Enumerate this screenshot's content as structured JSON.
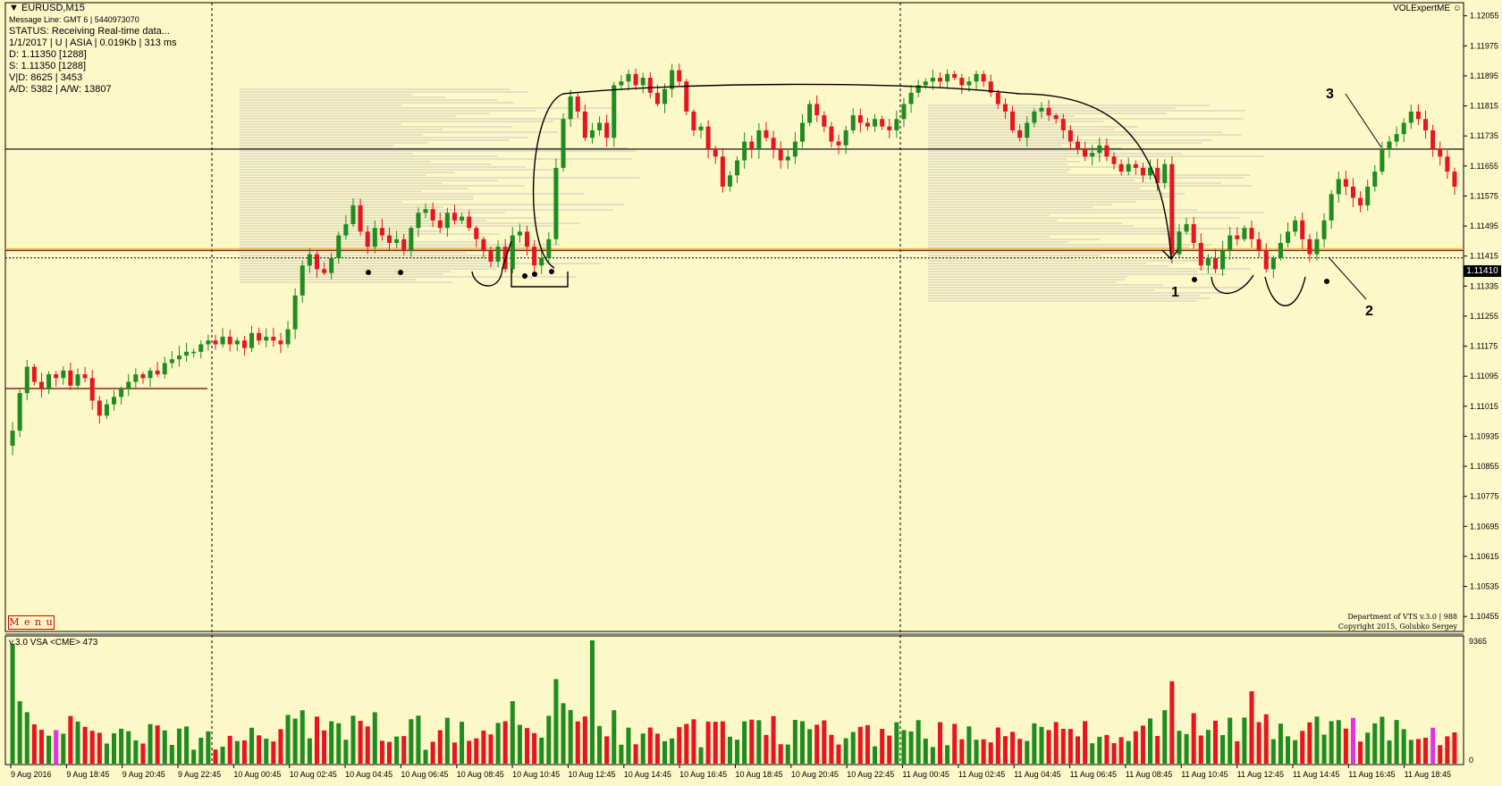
{
  "window": {
    "symbol_title": "EURUSD,M15",
    "expert_label": "VOLExpertME",
    "menu_label": "M e n u"
  },
  "info_panel": {
    "message_line": "Message Line: GMT 6 | 5440973070",
    "status": "STATUS:  Receiving Real-time data...",
    "session": "1/1/2017 | U | ASIA | 0.019Kb | 313 ms",
    "d_line": "D: 1.11350  [1288]",
    "s_line": "S: 1.11350  [1288]",
    "vd_line": "V|D: 8625 | 3453",
    "ad_line": "A/D: 5382 | A/W: 13807"
  },
  "credits": {
    "line1": "Department of VTS  v.3.0 | 988",
    "line2": "Copyright 2015, Golubko Sergey"
  },
  "vsa_panel": {
    "label": "v.3.0 VSA <CME> 473",
    "scale_max": "9365",
    "scale_min": "0"
  },
  "current_price": "1.11410",
  "annotations": [
    "1",
    "2",
    "3"
  ],
  "colors": {
    "background": "#fdf8c8",
    "bull": "#1e8c1e",
    "bear": "#e8141e",
    "volume_climax": "#e632e6",
    "level_line": "#8b2020",
    "orange_line": "#f0b428"
  },
  "chart_data": {
    "type": "candlestick",
    "symbol": "EURUSD",
    "timeframe": "M15",
    "ylim": [
      1.10415,
      1.1209
    ],
    "y_ticks": [
      "1.12055",
      "1.11975",
      "1.11895",
      "1.11815",
      "1.11735",
      "1.11655",
      "1.11575",
      "1.11495",
      "1.11415",
      "1.11335",
      "1.11255",
      "1.11175",
      "1.11095",
      "1.11015",
      "1.10935",
      "1.10855",
      "1.10775",
      "1.10695",
      "1.10615",
      "1.10535",
      "1.10455"
    ],
    "x_ticks": [
      "9 Aug 2016",
      "9 Aug 18:45",
      "9 Aug 20:45",
      "9 Aug 22:45",
      "10 Aug 00:45",
      "10 Aug 02:45",
      "10 Aug 04:45",
      "10 Aug 06:45",
      "10 Aug 08:45",
      "10 Aug 10:45",
      "10 Aug 12:45",
      "10 Aug 14:45",
      "10 Aug 16:45",
      "10 Aug 18:45",
      "10 Aug 20:45",
      "10 Aug 22:45",
      "11 Aug 00:45",
      "11 Aug 02:45",
      "11 Aug 04:45",
      "11 Aug 06:45",
      "11 Aug 08:45",
      "11 Aug 10:45",
      "11 Aug 12:45",
      "11 Aug 14:45",
      "11 Aug 16:45",
      "11 Aug 18:45"
    ],
    "horizontal_levels": [
      1.117,
      1.1143,
      1.1141
    ],
    "close": [
      1.1095,
      1.1105,
      1.1112,
      1.1108,
      1.1106,
      1.111,
      1.1109,
      1.1111,
      1.1107,
      1.111,
      1.1109,
      1.1103,
      1.1099,
      1.1102,
      1.1104,
      1.1106,
      1.1108,
      1.111,
      1.1109,
      1.1111,
      1.111,
      1.1113,
      1.1114,
      1.1115,
      1.1116,
      1.1116,
      1.1118,
      1.1119,
      1.1118,
      1.112,
      1.1118,
      1.1119,
      1.1117,
      1.1121,
      1.1119,
      1.112,
      1.1119,
      1.1118,
      1.1122,
      1.1131,
      1.1139,
      1.1142,
      1.1138,
      1.1137,
      1.1141,
      1.1147,
      1.115,
      1.1155,
      1.1148,
      1.1144,
      1.1149,
      1.1147,
      1.1145,
      1.1146,
      1.1143,
      1.1149,
      1.1153,
      1.1154,
      1.1151,
      1.1149,
      1.1153,
      1.1151,
      1.1152,
      1.1149,
      1.1146,
      1.1143,
      1.114,
      1.1144,
      1.1138,
      1.1147,
      1.1148,
      1.1144,
      1.1139,
      1.1141,
      1.1146,
      1.1165,
      1.1178,
      1.1184,
      1.118,
      1.1173,
      1.1175,
      1.1177,
      1.1173,
      1.1187,
      1.1188,
      1.119,
      1.1187,
      1.1189,
      1.1185,
      1.1182,
      1.1186,
      1.1191,
      1.1188,
      1.118,
      1.1175,
      1.1176,
      1.117,
      1.1168,
      1.116,
      1.1163,
      1.1167,
      1.1172,
      1.117,
      1.1175,
      1.1173,
      1.117,
      1.1167,
      1.1168,
      1.1172,
      1.1177,
      1.1182,
      1.1179,
      1.1176,
      1.1172,
      1.1171,
      1.1175,
      1.1179,
      1.1177,
      1.1176,
      1.1178,
      1.1176,
      1.1175,
      1.1178,
      1.1182,
      1.1185,
      1.1187,
      1.1188,
      1.1189,
      1.1188,
      1.119,
      1.1189,
      1.1187,
      1.1188,
      1.119,
      1.1188,
      1.1185,
      1.1182,
      1.118,
      1.1175,
      1.1173,
      1.1177,
      1.118,
      1.1181,
      1.1179,
      1.1178,
      1.1175,
      1.1172,
      1.117,
      1.1168,
      1.1169,
      1.1171,
      1.1168,
      1.1166,
      1.1164,
      1.1166,
      1.1165,
      1.1163,
      1.1165,
      1.1161,
      1.1166,
      1.1142,
      1.1148,
      1.115,
      1.1145,
      1.1139,
      1.1141,
      1.1138,
      1.1143,
      1.1147,
      1.1146,
      1.1149,
      1.1146,
      1.1143,
      1.1138,
      1.1141,
      1.1145,
      1.1148,
      1.1151,
      1.1146,
      1.1142,
      1.1146,
      1.1151,
      1.1158,
      1.1162,
      1.116,
      1.1157,
      1.1155,
      1.116,
      1.1164,
      1.117,
      1.1172,
      1.1174,
      1.1177,
      1.118,
      1.1178,
      1.1175,
      1.117,
      1.1168,
      1.1164,
      1.116
    ],
    "volume_max": 9365
  }
}
